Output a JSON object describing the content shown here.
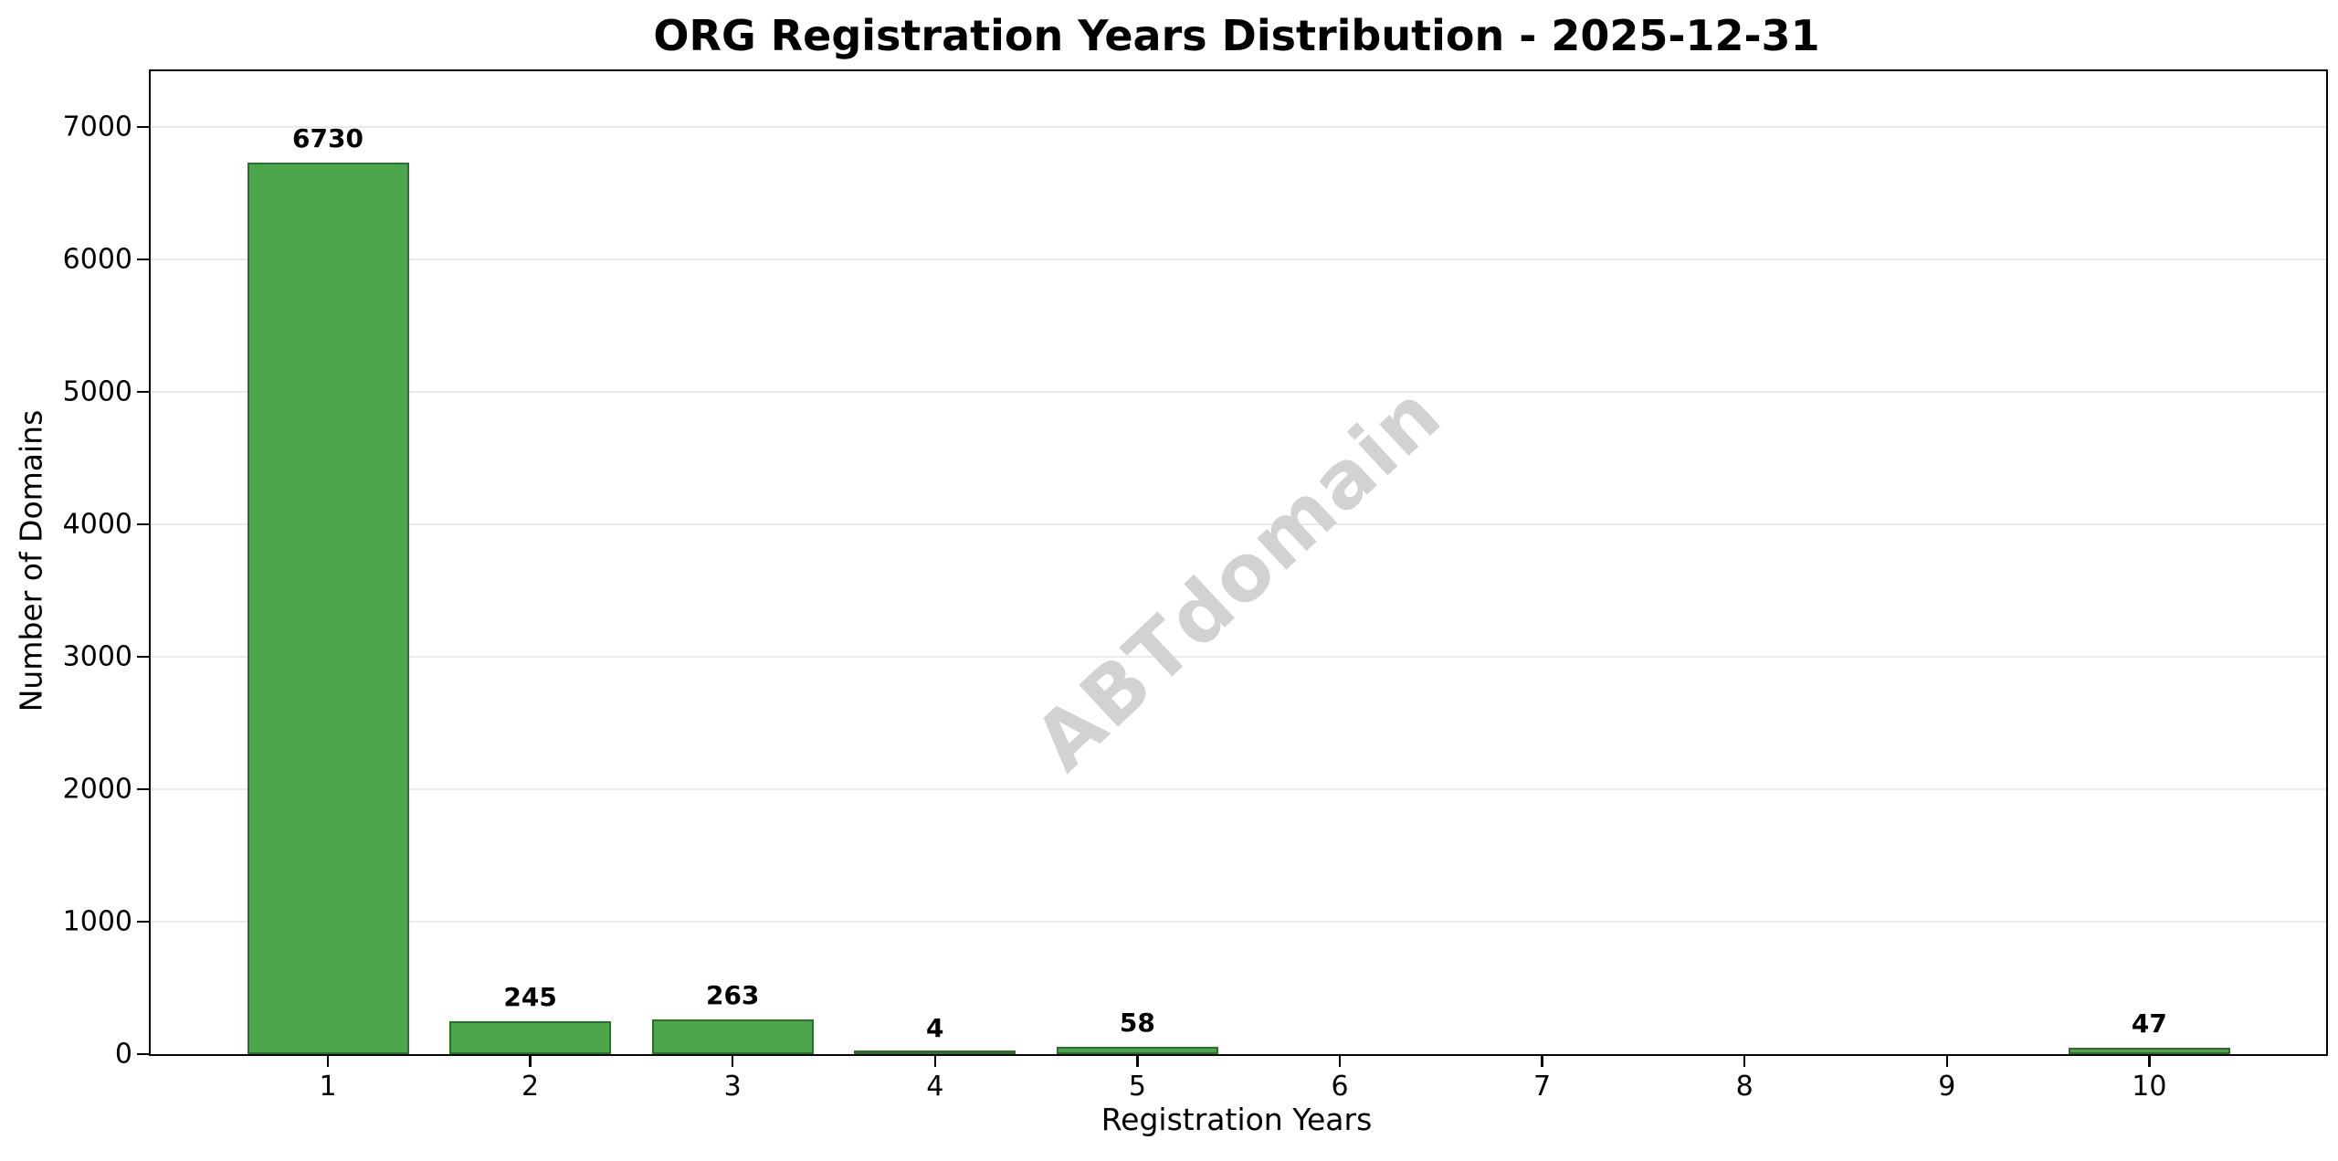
{
  "chart_data": {
    "type": "bar",
    "title": "ORG Registration Years Distribution - 2025-12-31",
    "xlabel": "Registration Years",
    "ylabel": "Number of Domains",
    "categories": [
      "1",
      "2",
      "3",
      "4",
      "5",
      "6",
      "7",
      "8",
      "9",
      "10"
    ],
    "values": [
      6730,
      245,
      263,
      4,
      58,
      0,
      0,
      0,
      0,
      47
    ],
    "bar_value_labels": [
      "6730",
      "245",
      "263",
      "4",
      "58",
      "",
      "",
      "",
      "",
      "47"
    ],
    "yticks": [
      0,
      1000,
      2000,
      3000,
      4000,
      5000,
      6000,
      7000
    ],
    "ylim": [
      0,
      7420
    ],
    "grid": "horizontal",
    "legend": "none",
    "watermark": "ABTdomain",
    "colors": {
      "bar_fill": "#4CA64C",
      "bar_edge": "#2D6E2D",
      "grid": "#E9E9E9",
      "axis": "#000000",
      "text": "#000000",
      "watermark": "#D2D2D2",
      "background": "#FFFFFF"
    }
  }
}
